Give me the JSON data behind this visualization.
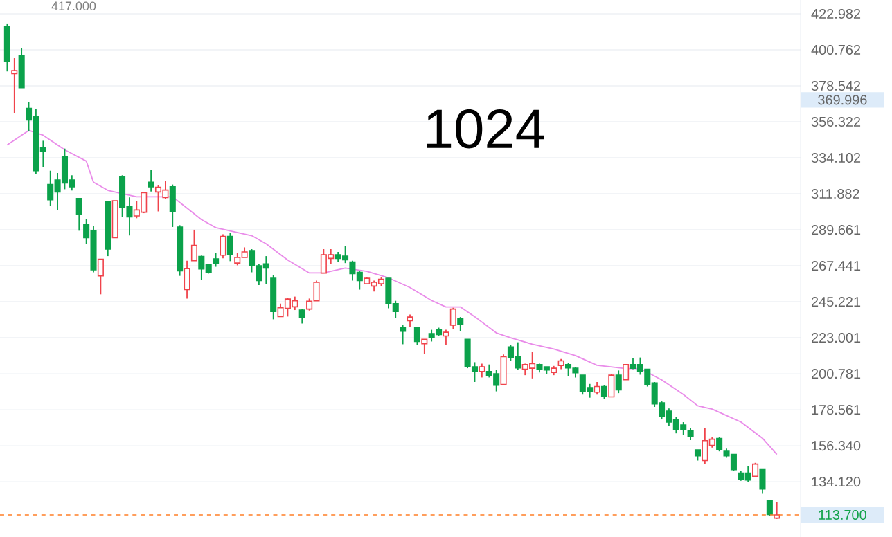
{
  "chart_data": {
    "type": "candlestick",
    "title": "1024",
    "categories": [
      null,
      null,
      null,
      null,
      null,
      null,
      null,
      null,
      null,
      null,
      null,
      null,
      null,
      null,
      null,
      null,
      null,
      null,
      null,
      null,
      null,
      null,
      null,
      null,
      null,
      null,
      null,
      null,
      null,
      null,
      null,
      null,
      null,
      null,
      null,
      null,
      null,
      null,
      null,
      null,
      null,
      null,
      null,
      null,
      null,
      null,
      null,
      null,
      null,
      null,
      null,
      null,
      null,
      null,
      null,
      null,
      null,
      null,
      null,
      null,
      null,
      null,
      null,
      null,
      null,
      null,
      null,
      null,
      null,
      null,
      null,
      null,
      null,
      null,
      null,
      null,
      null,
      null,
      null,
      null,
      null,
      null,
      null,
      null,
      null,
      null,
      null,
      null,
      null,
      null,
      null,
      null,
      null,
      null,
      null,
      null,
      null,
      null,
      null,
      null,
      null,
      null,
      null,
      null,
      null,
      null,
      null,
      null
    ],
    "ohlc": [
      [
        415.3,
        417,
        387.4,
        393.7
      ],
      [
        386.0,
        395.6,
        361.7,
        387.9
      ],
      [
        397.4,
        401.6,
        377.4,
        377.4
      ],
      [
        364.6,
        368.3,
        350.3,
        357.4
      ],
      [
        359.7,
        364.0,
        323.8,
        326.1
      ],
      [
        340.3,
        344.6,
        328.4,
        338.1
      ],
      [
        317.6,
        326.1,
        304.2,
        308.2
      ],
      [
        320.4,
        324.7,
        301.9,
        313.0
      ],
      [
        334.7,
        339.8,
        314.7,
        318.5
      ],
      [
        320.4,
        323.3,
        313.9,
        316.2
      ],
      [
        309.0,
        309.0,
        289.1,
        299.1
      ],
      [
        292.8,
        296.2,
        281.1,
        284.8
      ],
      [
        289.1,
        292.0,
        263.4,
        264.9
      ],
      [
        261.2,
        271.5,
        249.8,
        271.5
      ],
      [
        307.0,
        307.0,
        273.4,
        277.7
      ],
      [
        284.8,
        307.6,
        284.8,
        307.6
      ],
      [
        322.4,
        323.3,
        297.6,
        303.3
      ],
      [
        303.9,
        309.6,
        286.2,
        297.6
      ],
      [
        298.2,
        307.6,
        296.8,
        301.9
      ],
      [
        300.5,
        312.5,
        299.9,
        312.5
      ],
      [
        319.0,
        326.7,
        313.3,
        316.2
      ],
      [
        313.0,
        317.0,
        301.0,
        315.9
      ],
      [
        309.6,
        319.6,
        308.5,
        314.2
      ],
      [
        316.2,
        317.6,
        291.4,
        301.0
      ],
      [
        291.4,
        292.5,
        261.2,
        264.3
      ],
      [
        252.7,
        270.6,
        247.2,
        265.7
      ],
      [
        270.6,
        289.7,
        270.6,
        280.0
      ],
      [
        273.2,
        273.7,
        258.6,
        265.5
      ],
      [
        268.3,
        268.3,
        262.6,
        263.4
      ],
      [
        271.7,
        275.4,
        266.8,
        269.1
      ],
      [
        274.0,
        286.9,
        272.0,
        285.6
      ],
      [
        285.6,
        287.7,
        270.3,
        274.3
      ],
      [
        269.1,
        275.4,
        267.7,
        272.6
      ],
      [
        272.6,
        278.8,
        272.6,
        276.0
      ],
      [
        276.8,
        277.7,
        263.4,
        267.4
      ],
      [
        267.4,
        268.3,
        255.5,
        258.3
      ],
      [
        268.6,
        273.4,
        256.3,
        266.0
      ],
      [
        259.7,
        261.5,
        234.4,
        239.2
      ],
      [
        236.1,
        244.1,
        236.1,
        241.5
      ],
      [
        241.2,
        247.8,
        236.1,
        246.9
      ],
      [
        242.1,
        248.4,
        240.1,
        245.8
      ],
      [
        240.1,
        240.7,
        231.8,
        235.8
      ],
      [
        240.7,
        247.2,
        239.8,
        245.5
      ],
      [
        245.8,
        258.3,
        245.8,
        257.2
      ],
      [
        262.9,
        277.7,
        262.9,
        274.3
      ],
      [
        272.0,
        277.7,
        268.6,
        274.3
      ],
      [
        274.3,
        276.0,
        269.8,
        272.0
      ],
      [
        273.4,
        279.7,
        269.1,
        271.1
      ],
      [
        269.8,
        270.6,
        258.3,
        262.6
      ],
      [
        263.4,
        264.0,
        252.7,
        258.3
      ],
      [
        256.3,
        260.6,
        256.3,
        259.7
      ],
      [
        254.9,
        258.3,
        251.5,
        257.2
      ],
      [
        256.3,
        260.6,
        254.9,
        259.1
      ],
      [
        259.7,
        259.7,
        241.2,
        244.1
      ],
      [
        244.1,
        245.8,
        235.0,
        239.2
      ],
      [
        229.2,
        230.7,
        219.0,
        227.0
      ],
      [
        233.5,
        237.3,
        229.8,
        235.8
      ],
      [
        229.2,
        229.2,
        218.7,
        220.7
      ],
      [
        219.3,
        222.1,
        213.0,
        222.1
      ],
      [
        225.6,
        227.9,
        220.7,
        223.0
      ],
      [
        227.9,
        229.2,
        224.1,
        225.0
      ],
      [
        224.1,
        227.9,
        218.7,
        226.4
      ],
      [
        230.7,
        241.5,
        228.4,
        240.7
      ],
      [
        235.0,
        235.8,
        227.3,
        231.5
      ],
      [
        222.1,
        222.1,
        204.2,
        205.1
      ],
      [
        205.1,
        207.9,
        195.7,
        202.2
      ],
      [
        202.2,
        207.0,
        198.5,
        205.1
      ],
      [
        202.2,
        206.5,
        198.5,
        199.9
      ],
      [
        200.8,
        203.1,
        189.9,
        193.7
      ],
      [
        194.2,
        212.7,
        194.2,
        211.3
      ],
      [
        217.3,
        218.5,
        208.7,
        210.8
      ],
      [
        211.6,
        220.2,
        203.1,
        204.4
      ],
      [
        203.6,
        207.0,
        199.9,
        206.5
      ],
      [
        204.2,
        214.4,
        197.9,
        207.0
      ],
      [
        206.5,
        207.0,
        201.6,
        203.6
      ],
      [
        205.1,
        205.1,
        200.8,
        203.1
      ],
      [
        201.6,
        205.6,
        199.9,
        204.2
      ],
      [
        205.9,
        209.9,
        203.6,
        208.7
      ],
      [
        206.5,
        207.4,
        199.3,
        204.4
      ],
      [
        204.2,
        205.1,
        198.5,
        201.4
      ],
      [
        199.9,
        199.9,
        187.9,
        189.9
      ],
      [
        192.3,
        194.5,
        186.0,
        189.9
      ],
      [
        189.4,
        195.7,
        187.9,
        192.9
      ],
      [
        192.9,
        193.7,
        185.1,
        187.1
      ],
      [
        186.5,
        200.8,
        186.5,
        199.9
      ],
      [
        199.9,
        202.8,
        188.8,
        190.8
      ],
      [
        197.1,
        206.5,
        197.1,
        206.5
      ],
      [
        206.5,
        210.2,
        203.6,
        204.2
      ],
      [
        206.5,
        210.8,
        200.2,
        202.2
      ],
      [
        203.6,
        203.6,
        192.9,
        194.2
      ],
      [
        195.1,
        195.7,
        180.3,
        182.2
      ],
      [
        182.8,
        183.7,
        172.6,
        174.3
      ],
      [
        177.7,
        179.4,
        168.3,
        170.9
      ],
      [
        172.6,
        174.3,
        164.0,
        166.6
      ],
      [
        169.2,
        170.9,
        163.2,
        166.6
      ],
      [
        165.8,
        167.5,
        159.8,
        162.3
      ],
      [
        153.8,
        153.8,
        147.2,
        150.1
      ],
      [
        147.2,
        167.2,
        145.2,
        159.5
      ],
      [
        156.6,
        161.5,
        155.2,
        160.4
      ],
      [
        160.9,
        161.5,
        152.9,
        153.8
      ],
      [
        152.9,
        154.6,
        148.9,
        150.1
      ],
      [
        151.0,
        151.0,
        140.9,
        141.6
      ],
      [
        139.5,
        140.9,
        134.7,
        135.8
      ],
      [
        139.5,
        143.8,
        133.9,
        135.2
      ],
      [
        137.5,
        145.8,
        137.5,
        145.0
      ],
      [
        141.6,
        141.6,
        126.7,
        129.6
      ],
      [
        122.4,
        122.4,
        113.0,
        113.9
      ],
      [
        111.7,
        121.5,
        111.2,
        113.7
      ]
    ],
    "colors": [
      "#0ba24b",
      "#f0434b",
      "#0ba24b",
      "#0ba24b",
      "#0ba24b",
      "#0ba24b",
      "#0ba24b",
      "#0ba24b",
      "#0ba24b",
      "#0ba24b",
      "#0ba24b",
      "#0ba24b",
      "#0ba24b",
      "#f0434b",
      "#0ba24b",
      "#f0434b",
      "#0ba24b",
      "#0ba24b",
      "#f0434b",
      "#f0434b",
      "#0ba24b",
      "#f0434b",
      "#f0434b",
      "#0ba24b",
      "#0ba24b",
      "#f0434b",
      "#f0434b",
      "#0ba24b",
      "#0ba24b",
      "#0ba24b",
      "#f0434b",
      "#0ba24b",
      "#f0434b",
      "#f0434b",
      "#0ba24b",
      "#0ba24b",
      "#0ba24b",
      "#0ba24b",
      "#f0434b",
      "#f0434b",
      "#f0434b",
      "#0ba24b",
      "#f0434b",
      "#f0434b",
      "#f0434b",
      "#f0434b",
      "#0ba24b",
      "#0ba24b",
      "#0ba24b",
      "#0ba24b",
      "#f0434b",
      "#f0434b",
      "#f0434b",
      "#0ba24b",
      "#0ba24b",
      "#0ba24b",
      "#f0434b",
      "#0ba24b",
      "#f0434b",
      "#0ba24b",
      "#0ba24b",
      "#f0434b",
      "#f0434b",
      "#0ba24b",
      "#0ba24b",
      "#0ba24b",
      "#f0434b",
      "#0ba24b",
      "#0ba24b",
      "#f0434b",
      "#0ba24b",
      "#0ba24b",
      "#f0434b",
      "#f0434b",
      "#0ba24b",
      "#0ba24b",
      "#f0434b",
      "#f0434b",
      "#0ba24b",
      "#0ba24b",
      "#0ba24b",
      "#0ba24b",
      "#f0434b",
      "#0ba24b",
      "#f0434b",
      "#0ba24b",
      "#f0434b",
      "#0ba24b",
      "#0ba24b",
      "#0ba24b",
      "#0ba24b",
      "#0ba24b",
      "#0ba24b",
      "#0ba24b",
      "#0ba24b",
      "#0ba24b",
      "#0ba24b",
      "#f0434b",
      "#f0434b",
      "#0ba24b",
      "#0ba24b",
      "#0ba24b",
      "#0ba24b",
      "#0ba24b",
      "#f0434b",
      "#0ba24b",
      "#0ba24b",
      "#f0434b"
    ],
    "series": [
      {
        "type": "line",
        "color": "#e98ce9",
        "values": [
          342,
          null,
          null,
          351,
          null,
          348,
          null,
          null,
          339,
          null,
          null,
          332,
          319,
          null,
          314,
          null,
          null,
          null,
          310,
          null,
          310,
          null,
          null,
          310,
          null,
          303,
          null,
          296,
          null,
          291,
          null,
          289,
          null,
          null,
          286,
          null,
          281,
          null,
          null,
          271,
          null,
          null,
          263,
          null,
          263,
          null,
          null,
          266,
          null,
          null,
          264,
          null,
          null,
          260,
          null,
          null,
          254,
          null,
          null,
          246,
          null,
          242,
          null,
          242,
          null,
          236,
          null,
          null,
          226,
          null,
          223,
          null,
          null,
          219,
          null,
          null,
          216,
          null,
          null,
          212,
          null,
          null,
          206,
          null,
          null,
          null,
          204,
          null,
          204,
          null,
          null,
          197,
          null,
          null,
          188,
          null,
          181,
          null,
          179,
          null,
          null,
          null,
          171,
          null,
          null,
          161,
          null,
          151
        ]
      }
    ],
    "ylim": [
      100,
      431.5
    ],
    "yticks": [
      422.982,
      400.762,
      378.542,
      356.322,
      334.102,
      311.882,
      289.661,
      267.441,
      245.221,
      223.001,
      200.781,
      178.561,
      {
        "value": 156.34,
        "label": "156.340"
      },
      {
        "value": 134.12,
        "label": "134.120"
      }
    ],
    "tick_labels": "y",
    "grid": "y",
    "ref_lines": [
      {
        "axis": "y",
        "value": 113.7,
        "label": "113.700",
        "color": "#ff7f27",
        "line_style": "dashed"
      }
    ],
    "annotations": [
      "417.000",
      "369.996"
    ]
  }
}
